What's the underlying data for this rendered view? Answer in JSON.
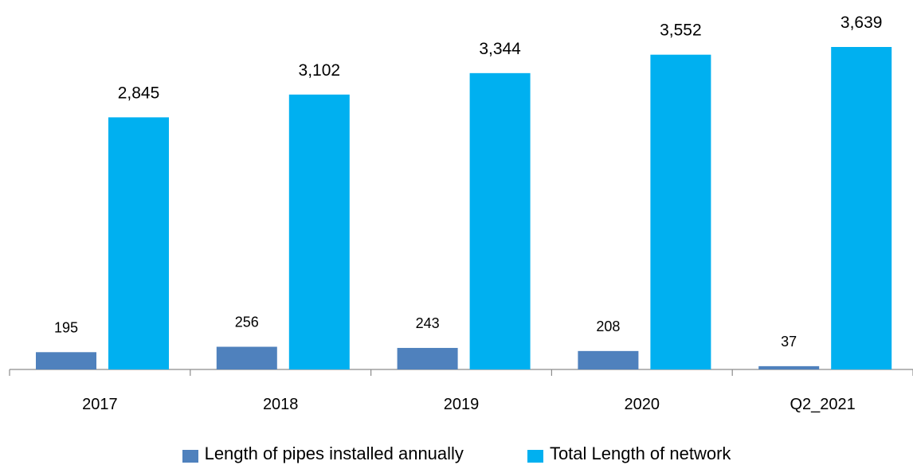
{
  "chart_data": {
    "type": "bar",
    "categories": [
      "2017",
      "2018",
      "2019",
      "2020",
      "Q2_2021"
    ],
    "series": [
      {
        "name": "Length of pipes installed annually",
        "values": [
          195,
          256,
          243,
          208,
          37
        ],
        "labels": [
          "195",
          "256",
          "243",
          "208",
          "37"
        ],
        "color": "#4f81bd"
      },
      {
        "name": "Total Length of network",
        "values": [
          2845,
          3102,
          3344,
          3552,
          3639
        ],
        "labels": [
          "2,845",
          "3,102",
          "3,344",
          "3,552",
          "3,639"
        ],
        "color": "#00b0f0"
      }
    ],
    "ylim": [
      0,
      3639
    ],
    "grid": false,
    "legend": "bottom"
  }
}
